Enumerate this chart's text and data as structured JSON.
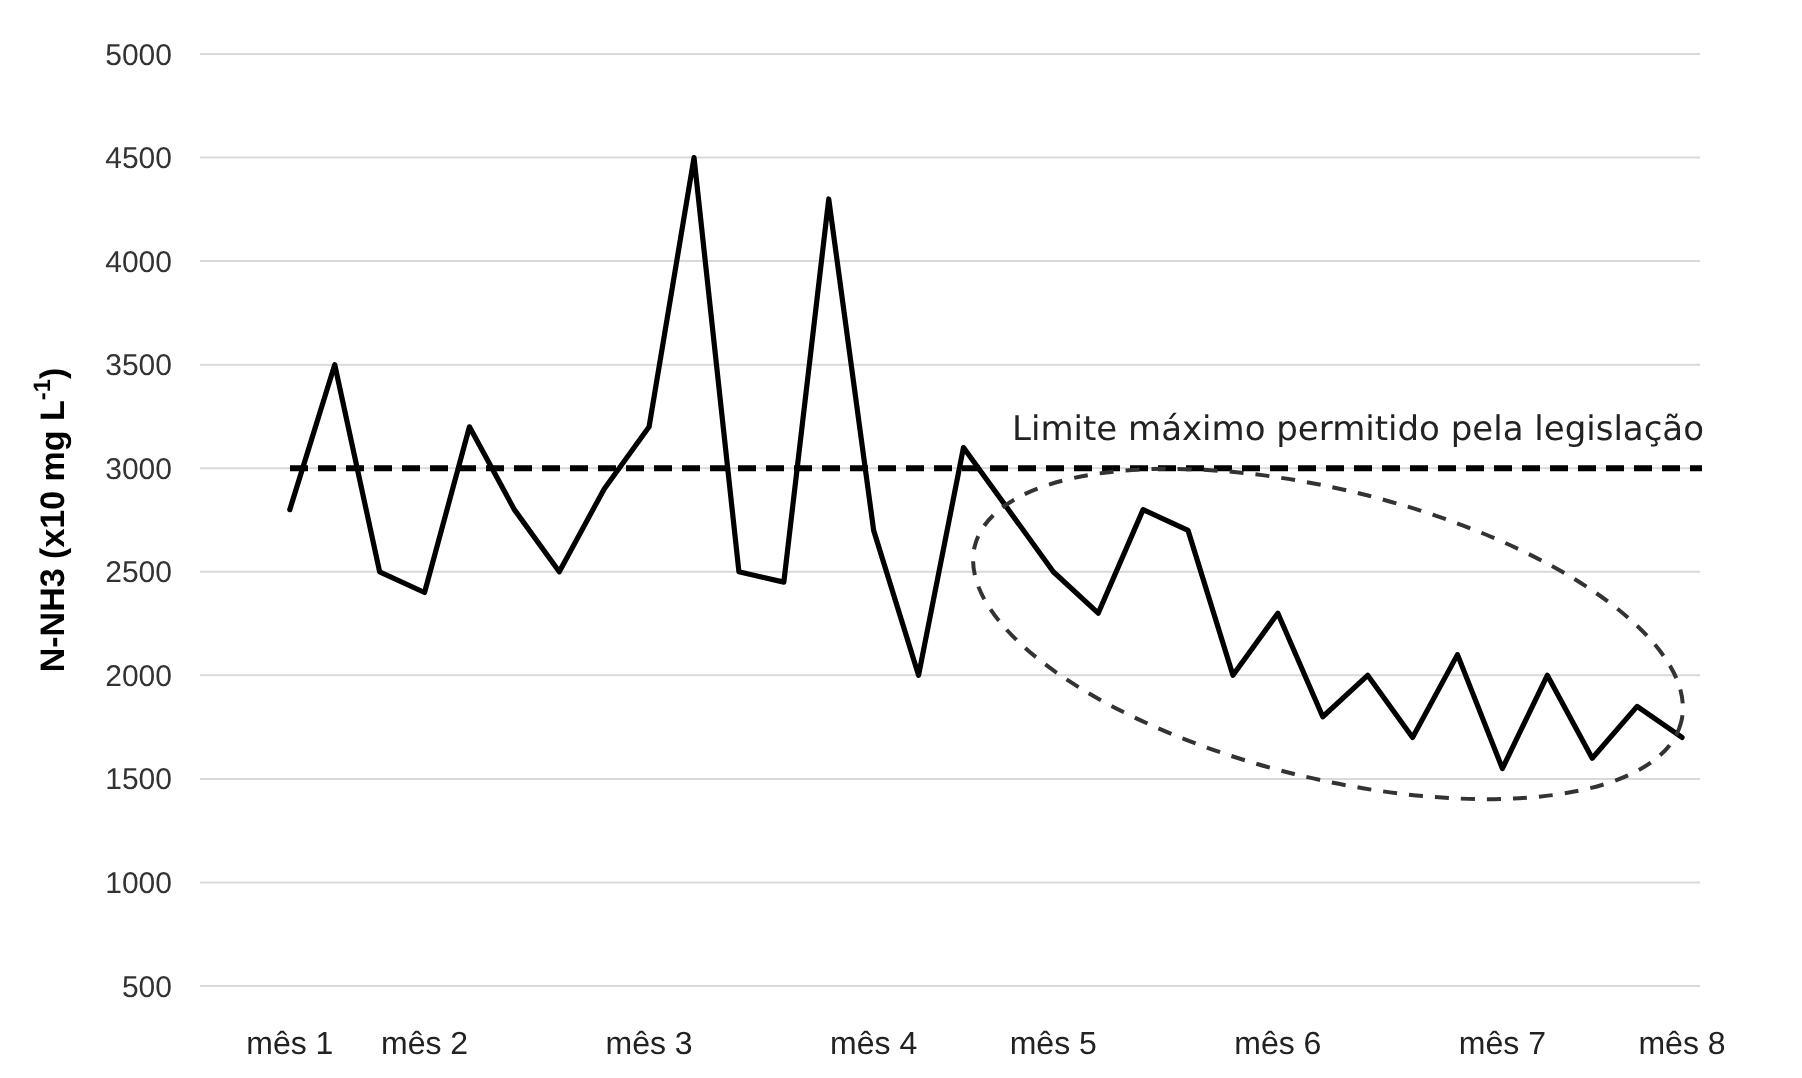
{
  "chart_data": {
    "type": "line",
    "ylabel": "N-NH3 (x10 mg L$^{-1}$)",
    "categories": [
      "mês 1",
      null,
      null,
      "mês 2",
      null,
      null,
      null,
      null,
      "mês 3",
      null,
      null,
      null,
      null,
      "mês 4",
      null,
      null,
      null,
      "mês 5",
      null,
      null,
      null,
      null,
      "mês 6",
      null,
      null,
      null,
      null,
      "mês 7",
      null,
      null,
      null,
      "mês 8"
    ],
    "series": [
      {
        "color": "#000000",
        "values": [
          2800,
          3500,
          2500,
          2400,
          3200,
          2800,
          2500,
          2900,
          3200,
          4500,
          2500,
          2450,
          4300,
          2700,
          2000,
          3100,
          2800,
          2500,
          2300,
          2800,
          2700,
          2000,
          2300,
          1800,
          2000,
          1700,
          2100,
          1550,
          2000,
          1600,
          1850,
          1700
        ]
      }
    ],
    "ylim": [
      500,
      5000
    ],
    "yticks": [
      500,
      1000,
      1500,
      2000,
      2500,
      3000,
      3500,
      4000,
      4500,
      5000
    ],
    "grid": "y",
    "marker": "none",
    "line_style": "solid",
    "ref_lines": [
      {
        "axis": "y",
        "value": 3000,
        "label": "Limite máximo permitido pela legislação",
        "color": "#000000",
        "line_style": "dashed"
      }
    ]
  }
}
